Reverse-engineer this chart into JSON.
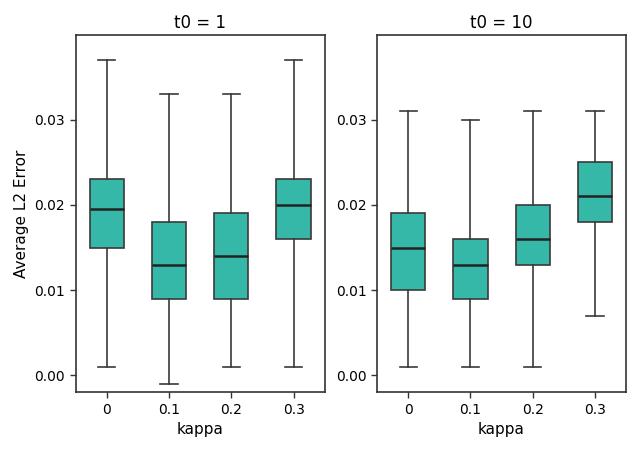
{
  "panels": [
    {
      "title": "t0 = 1",
      "xlabel": "kappa",
      "categories": [
        "0",
        "0.1",
        "0.2",
        "0.3"
      ],
      "boxes": [
        {
          "whislo": 0.001,
          "q1": 0.015,
          "med": 0.0195,
          "q3": 0.023,
          "whishi": 0.037
        },
        {
          "whislo": -0.001,
          "q1": 0.009,
          "med": 0.013,
          "q3": 0.018,
          "whishi": 0.033
        },
        {
          "whislo": 0.001,
          "q1": 0.009,
          "med": 0.014,
          "q3": 0.019,
          "whishi": 0.033
        },
        {
          "whislo": 0.001,
          "q1": 0.016,
          "med": 0.02,
          "q3": 0.023,
          "whishi": 0.037
        }
      ]
    },
    {
      "title": "t0 = 10",
      "xlabel": "kappa",
      "categories": [
        "0",
        "0.1",
        "0.2",
        "0.3"
      ],
      "boxes": [
        {
          "whislo": 0.001,
          "q1": 0.01,
          "med": 0.015,
          "q3": 0.019,
          "whishi": 0.031
        },
        {
          "whislo": 0.001,
          "q1": 0.009,
          "med": 0.013,
          "q3": 0.016,
          "whishi": 0.03
        },
        {
          "whislo": 0.001,
          "q1": 0.013,
          "med": 0.016,
          "q3": 0.02,
          "whishi": 0.031
        },
        {
          "whislo": 0.007,
          "q1": 0.018,
          "med": 0.021,
          "q3": 0.025,
          "whishi": 0.031
        }
      ]
    }
  ],
  "ylabel": "Average L2 Error",
  "ylim": [
    -0.002,
    0.04
  ],
  "yticks": [
    0.0,
    0.01,
    0.02,
    0.03
  ],
  "box_color": "#35b8a8",
  "box_edge_color": "#3a3a3a",
  "median_color": "#222222",
  "whisker_color": "#3a3a3a",
  "cap_color": "#3a3a3a",
  "background_color": "#ffffff",
  "title_fontsize": 12,
  "label_fontsize": 11,
  "tick_fontsize": 10,
  "box_width": 0.55,
  "linewidth": 1.2,
  "median_linewidth": 1.8
}
